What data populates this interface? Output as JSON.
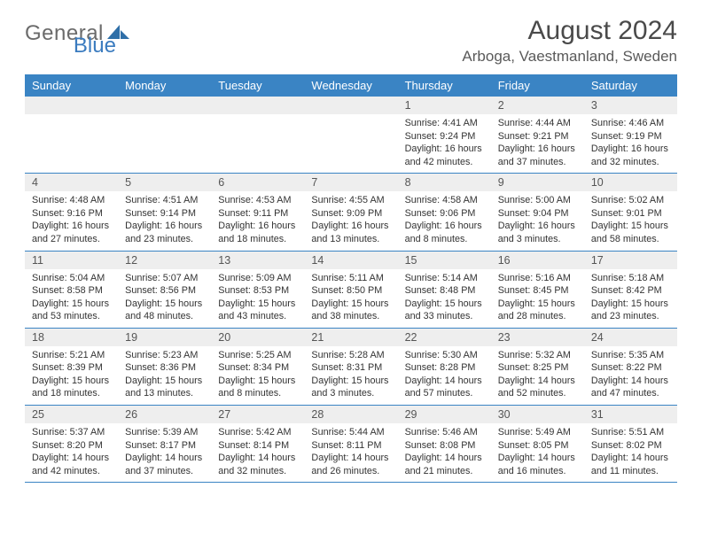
{
  "brand": {
    "part1": "General",
    "part2": "Blue",
    "part1_color": "#6b6b6b",
    "part2_color": "#3a7bbf"
  },
  "title": "August 2024",
  "location": "Arboga, Vaestmanland, Sweden",
  "colors": {
    "header_bg": "#3a84c4",
    "header_text": "#ffffff",
    "daynum_bg": "#eeeeee",
    "row_border": "#3a84c4"
  },
  "day_headers": [
    "Sunday",
    "Monday",
    "Tuesday",
    "Wednesday",
    "Thursday",
    "Friday",
    "Saturday"
  ],
  "weeks": [
    [
      null,
      null,
      null,
      null,
      {
        "n": "1",
        "sr": "4:41 AM",
        "ss": "9:24 PM",
        "dl": "16 hours and 42 minutes."
      },
      {
        "n": "2",
        "sr": "4:44 AM",
        "ss": "9:21 PM",
        "dl": "16 hours and 37 minutes."
      },
      {
        "n": "3",
        "sr": "4:46 AM",
        "ss": "9:19 PM",
        "dl": "16 hours and 32 minutes."
      }
    ],
    [
      {
        "n": "4",
        "sr": "4:48 AM",
        "ss": "9:16 PM",
        "dl": "16 hours and 27 minutes."
      },
      {
        "n": "5",
        "sr": "4:51 AM",
        "ss": "9:14 PM",
        "dl": "16 hours and 23 minutes."
      },
      {
        "n": "6",
        "sr": "4:53 AM",
        "ss": "9:11 PM",
        "dl": "16 hours and 18 minutes."
      },
      {
        "n": "7",
        "sr": "4:55 AM",
        "ss": "9:09 PM",
        "dl": "16 hours and 13 minutes."
      },
      {
        "n": "8",
        "sr": "4:58 AM",
        "ss": "9:06 PM",
        "dl": "16 hours and 8 minutes."
      },
      {
        "n": "9",
        "sr": "5:00 AM",
        "ss": "9:04 PM",
        "dl": "16 hours and 3 minutes."
      },
      {
        "n": "10",
        "sr": "5:02 AM",
        "ss": "9:01 PM",
        "dl": "15 hours and 58 minutes."
      }
    ],
    [
      {
        "n": "11",
        "sr": "5:04 AM",
        "ss": "8:58 PM",
        "dl": "15 hours and 53 minutes."
      },
      {
        "n": "12",
        "sr": "5:07 AM",
        "ss": "8:56 PM",
        "dl": "15 hours and 48 minutes."
      },
      {
        "n": "13",
        "sr": "5:09 AM",
        "ss": "8:53 PM",
        "dl": "15 hours and 43 minutes."
      },
      {
        "n": "14",
        "sr": "5:11 AM",
        "ss": "8:50 PM",
        "dl": "15 hours and 38 minutes."
      },
      {
        "n": "15",
        "sr": "5:14 AM",
        "ss": "8:48 PM",
        "dl": "15 hours and 33 minutes."
      },
      {
        "n": "16",
        "sr": "5:16 AM",
        "ss": "8:45 PM",
        "dl": "15 hours and 28 minutes."
      },
      {
        "n": "17",
        "sr": "5:18 AM",
        "ss": "8:42 PM",
        "dl": "15 hours and 23 minutes."
      }
    ],
    [
      {
        "n": "18",
        "sr": "5:21 AM",
        "ss": "8:39 PM",
        "dl": "15 hours and 18 minutes."
      },
      {
        "n": "19",
        "sr": "5:23 AM",
        "ss": "8:36 PM",
        "dl": "15 hours and 13 minutes."
      },
      {
        "n": "20",
        "sr": "5:25 AM",
        "ss": "8:34 PM",
        "dl": "15 hours and 8 minutes."
      },
      {
        "n": "21",
        "sr": "5:28 AM",
        "ss": "8:31 PM",
        "dl": "15 hours and 3 minutes."
      },
      {
        "n": "22",
        "sr": "5:30 AM",
        "ss": "8:28 PM",
        "dl": "14 hours and 57 minutes."
      },
      {
        "n": "23",
        "sr": "5:32 AM",
        "ss": "8:25 PM",
        "dl": "14 hours and 52 minutes."
      },
      {
        "n": "24",
        "sr": "5:35 AM",
        "ss": "8:22 PM",
        "dl": "14 hours and 47 minutes."
      }
    ],
    [
      {
        "n": "25",
        "sr": "5:37 AM",
        "ss": "8:20 PM",
        "dl": "14 hours and 42 minutes."
      },
      {
        "n": "26",
        "sr": "5:39 AM",
        "ss": "8:17 PM",
        "dl": "14 hours and 37 minutes."
      },
      {
        "n": "27",
        "sr": "5:42 AM",
        "ss": "8:14 PM",
        "dl": "14 hours and 32 minutes."
      },
      {
        "n": "28",
        "sr": "5:44 AM",
        "ss": "8:11 PM",
        "dl": "14 hours and 26 minutes."
      },
      {
        "n": "29",
        "sr": "5:46 AM",
        "ss": "8:08 PM",
        "dl": "14 hours and 21 minutes."
      },
      {
        "n": "30",
        "sr": "5:49 AM",
        "ss": "8:05 PM",
        "dl": "14 hours and 16 minutes."
      },
      {
        "n": "31",
        "sr": "5:51 AM",
        "ss": "8:02 PM",
        "dl": "14 hours and 11 minutes."
      }
    ]
  ],
  "labels": {
    "sunrise": "Sunrise: ",
    "sunset": "Sunset: ",
    "daylight": "Daylight: "
  }
}
